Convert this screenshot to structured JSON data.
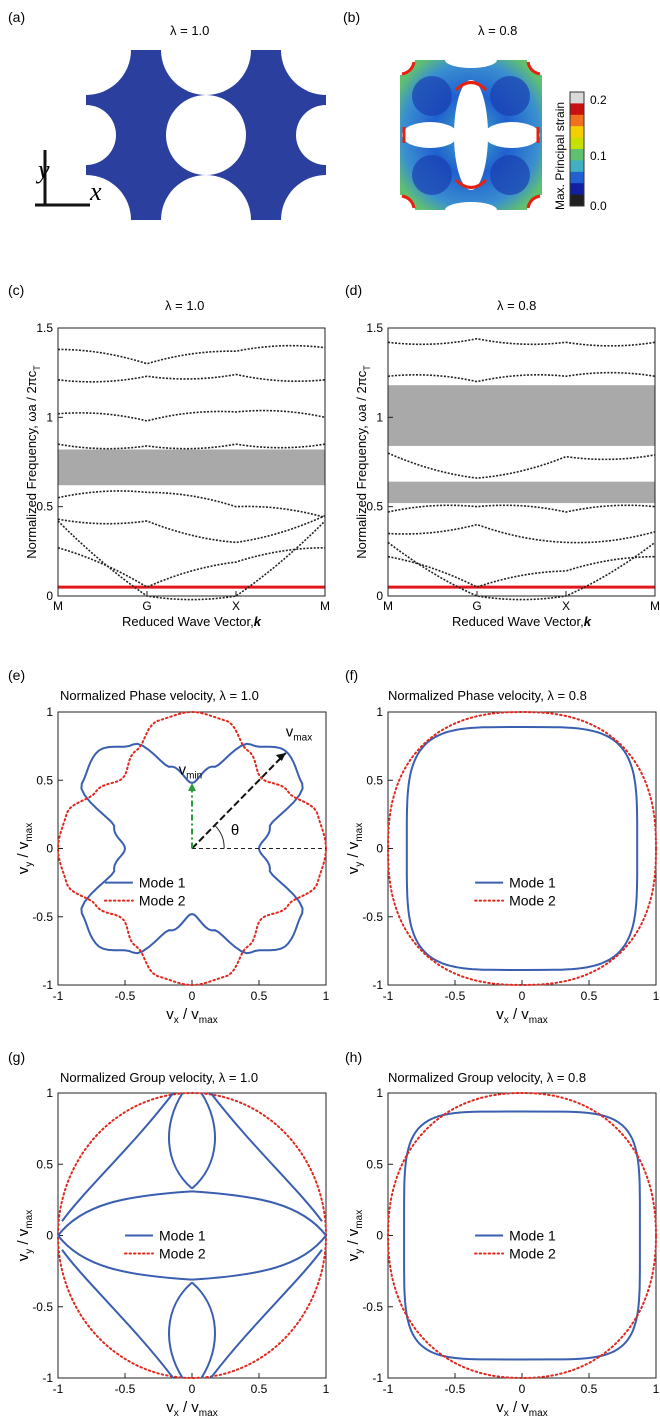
{
  "panels": {
    "a": {
      "label": "(a)",
      "title": "λ = 1.0",
      "axis_y": "y",
      "axis_x": "x"
    },
    "b": {
      "label": "(b)",
      "title": "λ = 0.8",
      "colorbar": {
        "label": "Max. Principal strain",
        "ticks": [
          "0.2",
          "0.1",
          "0.0"
        ],
        "colors": [
          "#d9d9d9",
          "#c81010",
          "#f07020",
          "#f4d000",
          "#c8e000",
          "#60c070",
          "#40b0c0",
          "#2060d0",
          "#1020a0",
          "#202020"
        ]
      }
    },
    "c": {
      "label": "(c)",
      "title": "λ = 1.0"
    },
    "d": {
      "label": "(d)",
      "title": "λ = 0.8"
    },
    "e": {
      "label": "(e)",
      "title": "Normalized Phase velocity, λ = 1.0",
      "annotations": {
        "vmin": "v",
        "vmin_sub": "min",
        "vmax": "v",
        "vmax_sub": "max",
        "theta": "θ"
      }
    },
    "f": {
      "label": "(f)",
      "title": "Normalized Phase velocity, λ = 0.8"
    },
    "g": {
      "label": "(g)",
      "title": "Normalized Group velocity, λ = 1.0"
    },
    "h": {
      "label": "(h)",
      "title": "Normalized Group velocity, λ = 0.8"
    }
  },
  "band_axes": {
    "ylabel": "Normalized Frequency, ωa / 2πc",
    "ylabel_sub": "T",
    "xlabel": "Reduced Wave Vector,",
    "xlabel_bold": "k",
    "xticks": [
      "M",
      "G",
      "X",
      "M"
    ],
    "yticks": [
      "0",
      "0.5",
      "1",
      "1.5"
    ]
  },
  "polar_axes": {
    "xlabel_main": "v",
    "xlabel_sub": "x",
    "xlabel_den": " / v",
    "xlabel_den_sub": "max",
    "ylabel_main": "v",
    "ylabel_sub": "y",
    "ylabel_den": " / v",
    "ylabel_den_sub": "max",
    "ticks": [
      "-1",
      "-0.5",
      "0",
      "0.5",
      "1"
    ]
  },
  "legend": {
    "mode1": "Mode 1",
    "mode2": "Mode 2"
  },
  "colors": {
    "mode1": "#3a5fb0",
    "mode2": "#e0281e",
    "band": "#222222",
    "gap": "#a9a9aa",
    "red_line": "#e0181e",
    "structure": "#2a3f9e"
  },
  "chart_data": [
    {
      "type": "line",
      "panel": "c",
      "title": "λ = 1.0",
      "xlabel": "Reduced Wave Vector, k",
      "ylabel": "Normalized Frequency, ωa / 2πc_T",
      "x_categories": [
        "M",
        "G",
        "X",
        "M"
      ],
      "ylim": [
        0,
        1.5
      ],
      "band_gaps": [
        [
          0.62,
          0.82
        ]
      ],
      "reference_line": 0.05,
      "bands_at_points": [
        {
          "M": 0.42,
          "G": 0.0,
          "X": 0.0,
          "M2": 0.42
        },
        {
          "M": 0.27,
          "G": 0.05,
          "X": 0.19,
          "M2": 0.27
        },
        {
          "M": 0.43,
          "G": 0.42,
          "X": 0.3,
          "M2": 0.45
        },
        {
          "M": 0.55,
          "G": 0.58,
          "X": 0.5,
          "M2": 0.44
        },
        {
          "M": 0.85,
          "G": 0.84,
          "X": 0.85,
          "M2": 0.85
        },
        {
          "M": 1.02,
          "G": 0.98,
          "X": 1.03,
          "M2": 1.0
        },
        {
          "M": 1.21,
          "G": 1.23,
          "X": 1.24,
          "M2": 1.21
        },
        {
          "M": 1.38,
          "G": 1.3,
          "X": 1.37,
          "M2": 1.39
        }
      ]
    },
    {
      "type": "line",
      "panel": "d",
      "title": "λ = 0.8",
      "xlabel": "Reduced Wave Vector, k",
      "ylabel": "Normalized Frequency, ωa / 2πc_T",
      "x_categories": [
        "M",
        "G",
        "X",
        "M"
      ],
      "ylim": [
        0,
        1.5
      ],
      "band_gaps": [
        [
          0.52,
          0.64
        ],
        [
          0.84,
          1.18
        ]
      ],
      "reference_line": 0.05,
      "bands_at_points": [
        {
          "M": 0.3,
          "G": 0.0,
          "X": 0.0,
          "M2": 0.3
        },
        {
          "M": 0.22,
          "G": 0.05,
          "X": 0.14,
          "M2": 0.22
        },
        {
          "M": 0.35,
          "G": 0.4,
          "X": 0.3,
          "M2": 0.36
        },
        {
          "M": 0.47,
          "G": 0.5,
          "X": 0.47,
          "M2": 0.5
        },
        {
          "M": 0.8,
          "G": 0.66,
          "X": 0.78,
          "M2": 0.79
        },
        {
          "M": 1.23,
          "G": 1.2,
          "X": 1.23,
          "M2": 1.23
        },
        {
          "M": 1.42,
          "G": 1.44,
          "X": 1.42,
          "M2": 1.42
        }
      ]
    },
    {
      "type": "line",
      "panel": "e",
      "title": "Normalized Phase velocity, λ = 1.0",
      "xlabel": "v_x / v_max",
      "ylabel": "v_y / v_max",
      "xlim": [
        -1,
        1
      ],
      "ylim": [
        -1,
        1
      ],
      "series": [
        {
          "name": "Mode 1",
          "style": "solid",
          "theta_deg": [
            0,
            15,
            30,
            45,
            60,
            75,
            90
          ],
          "r": [
            0.5,
            0.6,
            0.95,
            1.0,
            0.88,
            0.62,
            0.48
          ]
        },
        {
          "name": "Mode 2",
          "style": "dotted",
          "theta_deg": [
            0,
            15,
            30,
            45,
            60,
            75,
            90
          ],
          "r": [
            1.0,
            0.97,
            0.83,
            0.73,
            0.83,
            0.97,
            1.0
          ]
        }
      ]
    },
    {
      "type": "line",
      "panel": "f",
      "title": "Normalized Phase velocity, λ = 0.8",
      "xlabel": "v_x / v_max",
      "ylabel": "v_y / v_max",
      "xlim": [
        -1,
        1
      ],
      "ylim": [
        -1,
        1
      ],
      "series": [
        {
          "name": "Mode 1",
          "style": "solid",
          "superellipse": {
            "a": 0.86,
            "b": 0.89,
            "n": 4.2
          }
        },
        {
          "name": "Mode 2",
          "style": "dotted",
          "superellipse": {
            "a": 1.0,
            "b": 1.0,
            "n": 2.4
          }
        }
      ]
    },
    {
      "type": "line",
      "panel": "g",
      "title": "Normalized Group velocity, λ = 1.0",
      "xlabel": "v_x / v_max",
      "ylabel": "v_y / v_max",
      "xlim": [
        -1,
        1
      ],
      "ylim": [
        -1,
        1
      ],
      "series": [
        {
          "name": "Mode 1",
          "style": "solid",
          "branches": [
            [
              [
                0.0,
                0.31
              ],
              [
                0.5,
                0.28
              ],
              [
                0.82,
                0.22
              ],
              [
                1.0,
                0.0
              ]
            ],
            [
              [
                0.0,
                0.33
              ],
              [
                0.21,
                0.5
              ],
              [
                0.22,
                0.78
              ],
              [
                0.07,
                1.0
              ]
            ],
            [
              [
                0.14,
                1.0
              ],
              [
                0.45,
                0.62
              ],
              [
                0.8,
                0.32
              ],
              [
                0.97,
                0.1
              ]
            ]
          ]
        },
        {
          "name": "Mode 2",
          "style": "dotted",
          "superellipse": {
            "a": 1.0,
            "b": 1.0,
            "n": 2.0
          }
        }
      ]
    },
    {
      "type": "line",
      "panel": "h",
      "title": "Normalized Group velocity, λ = 0.8",
      "xlabel": "v_x / v_max",
      "ylabel": "v_y / v_max",
      "xlim": [
        -1,
        1
      ],
      "ylim": [
        -1,
        1
      ],
      "series": [
        {
          "name": "Mode 1",
          "style": "solid",
          "superellipse": {
            "a": 0.88,
            "b": 0.87,
            "n": 5.0
          }
        },
        {
          "name": "Mode 2",
          "style": "dotted",
          "superellipse": {
            "a": 1.0,
            "b": 1.0,
            "n": 2.2
          }
        }
      ]
    }
  ]
}
